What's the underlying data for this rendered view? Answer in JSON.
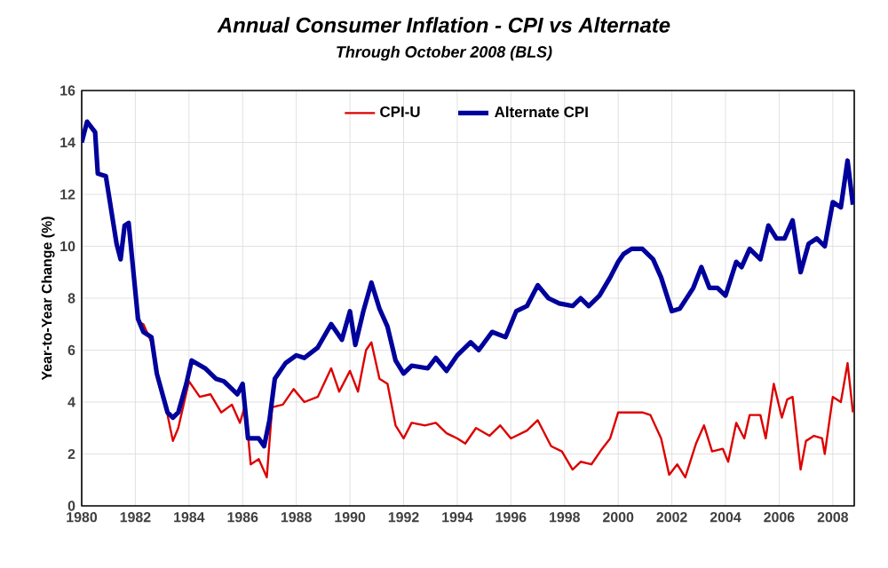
{
  "chart_data": {
    "type": "line",
    "title": "Annual Consumer Inflation - CPI vs Alternate",
    "subtitle": "Through October 2008 (BLS)",
    "ylabel": "Year-to-Year Change (%)",
    "xlim": [
      1980,
      2008.8
    ],
    "xticks": [
      1980,
      1982,
      1984,
      1986,
      1988,
      1990,
      1992,
      1994,
      1996,
      1998,
      2000,
      2002,
      2004,
      2006,
      2008
    ],
    "ylim": [
      0,
      16
    ],
    "yticks": [
      0,
      2,
      4,
      6,
      8,
      10,
      12,
      14,
      16
    ],
    "grid": true,
    "legend": "top",
    "line_style": "solid",
    "marker": "none",
    "series": [
      {
        "name": "CPI-U",
        "color": "#dd0000",
        "x": [
          1982.1,
          1982.3,
          1982.6,
          1982.8,
          1983.2,
          1983.4,
          1983.6,
          1984.0,
          1984.4,
          1984.8,
          1985.2,
          1985.6,
          1985.9,
          1986.1,
          1986.3,
          1986.6,
          1986.9,
          1987.1,
          1987.5,
          1987.9,
          1988.3,
          1988.8,
          1989.3,
          1989.6,
          1990.0,
          1990.3,
          1990.6,
          1990.8,
          1991.1,
          1991.4,
          1991.7,
          1992.0,
          1992.3,
          1992.8,
          1993.2,
          1993.6,
          1994.0,
          1994.3,
          1994.7,
          1995.2,
          1995.6,
          1996.0,
          1996.6,
          1997.0,
          1997.5,
          1997.9,
          1998.3,
          1998.6,
          1999.0,
          1999.4,
          1999.7,
          2000.0,
          2000.5,
          2000.9,
          2001.2,
          2001.6,
          2001.9,
          2002.2,
          2002.5,
          2002.9,
          2003.2,
          2003.5,
          2003.9,
          2004.1,
          2004.4,
          2004.7,
          2004.9,
          2005.3,
          2005.5,
          2005.8,
          2006.1,
          2006.3,
          2006.5,
          2006.8,
          2007.0,
          2007.3,
          2007.6,
          2007.7,
          2008.0,
          2008.3,
          2008.55,
          2008.75
        ],
        "values": [
          7.1,
          7.0,
          6.3,
          5.0,
          3.5,
          2.5,
          3.0,
          4.8,
          4.2,
          4.3,
          3.6,
          3.9,
          3.2,
          3.9,
          1.6,
          1.8,
          1.1,
          3.8,
          3.9,
          4.5,
          4.0,
          4.2,
          5.3,
          4.4,
          5.2,
          4.4,
          6.0,
          6.3,
          4.9,
          4.7,
          3.1,
          2.6,
          3.2,
          3.1,
          3.2,
          2.8,
          2.6,
          2.4,
          3.0,
          2.7,
          3.1,
          2.6,
          2.9,
          3.3,
          2.3,
          2.1,
          1.4,
          1.7,
          1.6,
          2.2,
          2.6,
          3.6,
          3.6,
          3.6,
          3.5,
          2.6,
          1.2,
          1.6,
          1.1,
          2.4,
          3.1,
          2.1,
          2.2,
          1.7,
          3.2,
          2.6,
          3.5,
          3.5,
          2.6,
          4.7,
          3.4,
          4.1,
          4.2,
          1.4,
          2.5,
          2.7,
          2.6,
          2.0,
          4.2,
          4.0,
          5.5,
          3.6
        ]
      },
      {
        "name": "Alternate CPI",
        "color": "#00009c",
        "x": [
          1980,
          1980.2,
          1980.5,
          1980.6,
          1980.9,
          1981.3,
          1981.45,
          1981.6,
          1981.75,
          1982.1,
          1982.3,
          1982.6,
          1982.8,
          1983.2,
          1983.4,
          1983.6,
          1983.9,
          1984.1,
          1984.6,
          1985.0,
          1985.3,
          1985.8,
          1986.0,
          1986.2,
          1986.6,
          1986.8,
          1987.0,
          1987.2,
          1987.6,
          1988.0,
          1988.3,
          1988.8,
          1989.3,
          1989.7,
          1990.0,
          1990.2,
          1990.5,
          1990.8,
          1991.1,
          1991.4,
          1991.7,
          1992.0,
          1992.3,
          1992.9,
          1993.2,
          1993.6,
          1994.0,
          1994.5,
          1994.8,
          1995.3,
          1995.8,
          1996.2,
          1996.6,
          1997.0,
          1997.4,
          1997.8,
          1998.3,
          1998.6,
          1998.9,
          1999.3,
          1999.7,
          2000.0,
          2000.2,
          2000.5,
          2000.9,
          2001.3,
          2001.6,
          2002.0,
          2002.3,
          2002.8,
          2003.1,
          2003.4,
          2003.7,
          2004.0,
          2004.4,
          2004.6,
          2004.9,
          2005.3,
          2005.6,
          2005.9,
          2006.2,
          2006.5,
          2006.8,
          2007.1,
          2007.4,
          2007.7,
          2008.0,
          2008.3,
          2008.55,
          2008.75
        ],
        "values": [
          14.0,
          14.8,
          14.4,
          12.8,
          12.7,
          10.1,
          9.5,
          10.8,
          10.9,
          7.2,
          6.7,
          6.5,
          5.1,
          3.6,
          3.4,
          3.6,
          4.7,
          5.6,
          5.3,
          4.9,
          4.8,
          4.3,
          4.7,
          2.6,
          2.6,
          2.3,
          3.3,
          4.9,
          5.5,
          5.8,
          5.7,
          6.1,
          7.0,
          6.4,
          7.5,
          6.2,
          7.5,
          8.6,
          7.6,
          6.9,
          5.6,
          5.1,
          5.4,
          5.3,
          5.7,
          5.2,
          5.8,
          6.3,
          6.0,
          6.7,
          6.5,
          7.5,
          7.7,
          8.5,
          8.0,
          7.8,
          7.7,
          8.0,
          7.7,
          8.1,
          8.8,
          9.4,
          9.7,
          9.9,
          9.9,
          9.5,
          8.8,
          7.5,
          7.6,
          8.4,
          9.2,
          8.4,
          8.4,
          8.1,
          9.4,
          9.2,
          9.9,
          9.5,
          10.8,
          10.3,
          10.3,
          11.0,
          9.0,
          10.1,
          10.3,
          10.0,
          11.7,
          11.5,
          13.3,
          11.6
        ]
      }
    ]
  }
}
